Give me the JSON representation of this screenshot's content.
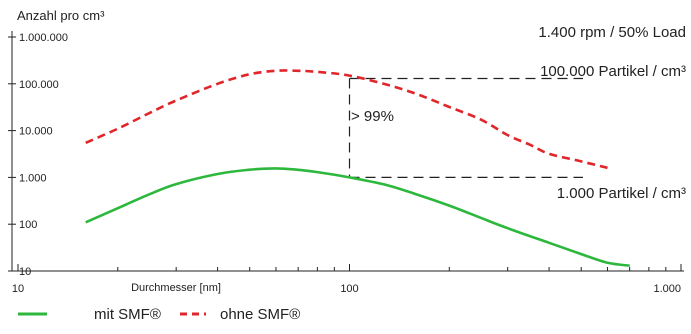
{
  "chart_data": {
    "type": "line",
    "ylabel": "Anzahl pro cm³",
    "xlabel": "Durchmesser [nm]",
    "x_scale": "log",
    "y_scale": "log",
    "xlim": [
      10,
      1000
    ],
    "ylim": [
      10,
      1000000
    ],
    "x_ticks": [
      {
        "value": 10,
        "label": "10"
      },
      {
        "value": 100,
        "label": "100"
      },
      {
        "value": 1000,
        "label": "1.000"
      }
    ],
    "y_ticks": [
      {
        "value": 10,
        "label": "10"
      },
      {
        "value": 100,
        "label": "100"
      },
      {
        "value": 1000,
        "label": "1.000"
      },
      {
        "value": 10000,
        "label": "10.000"
      },
      {
        "value": 100000,
        "label": "100.000"
      },
      {
        "value": 1000000,
        "label": "1.000.000"
      }
    ],
    "grid": false,
    "legend_position": "bottom-left",
    "series": [
      {
        "name": "mit SMF®",
        "color": "#2db83d",
        "style": "solid",
        "points": [
          [
            16,
            110
          ],
          [
            20,
            220
          ],
          [
            25,
            440
          ],
          [
            30,
            720
          ],
          [
            40,
            1180
          ],
          [
            50,
            1460
          ],
          [
            60,
            1560
          ],
          [
            70,
            1450
          ],
          [
            80,
            1300
          ],
          [
            100,
            1000
          ],
          [
            130,
            680
          ],
          [
            160,
            430
          ],
          [
            200,
            250
          ],
          [
            250,
            135
          ],
          [
            300,
            82
          ],
          [
            400,
            40
          ],
          [
            500,
            23
          ],
          [
            600,
            15
          ],
          [
            700,
            13
          ]
        ]
      },
      {
        "name": "ohne SMF®",
        "color": "#e0262a",
        "style": "dashed",
        "points": [
          [
            16,
            5500
          ],
          [
            20,
            11000
          ],
          [
            25,
            24000
          ],
          [
            30,
            44000
          ],
          [
            40,
            100000
          ],
          [
            50,
            160000
          ],
          [
            60,
            190000
          ],
          [
            70,
            190000
          ],
          [
            80,
            180000
          ],
          [
            100,
            150000
          ],
          [
            130,
            95000
          ],
          [
            160,
            60000
          ],
          [
            200,
            32000
          ],
          [
            250,
            17000
          ],
          [
            300,
            8000
          ],
          [
            350,
            5000
          ],
          [
            400,
            3200
          ],
          [
            500,
            2200
          ],
          [
            600,
            1600
          ]
        ]
      }
    ],
    "annotations": {
      "condition": "1.400 rpm / 50% Load",
      "upper_level_label": "100.000 Partikel / cm³",
      "upper_level_value": 130000,
      "lower_level_label": "1.000 Partikel / cm³",
      "lower_level_value": 1000,
      "reduction_label": "> 99%",
      "reduction_x": 100
    }
  }
}
